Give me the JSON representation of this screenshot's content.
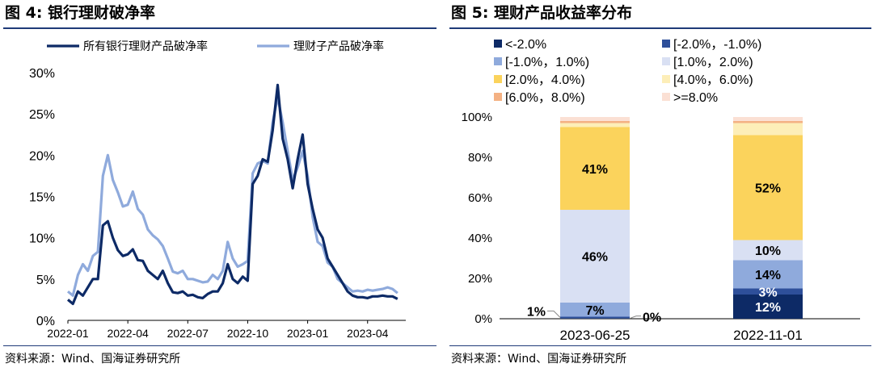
{
  "left": {
    "title": "图 4:  银行理财破净率",
    "source": "资料来源：Wind、国海证券研究所",
    "legend": [
      "所有银行理财产品破净率",
      "理财子产品破净率"
    ],
    "series_colors": [
      "#0d2a66",
      "#8faadc"
    ]
  },
  "right": {
    "title": "图 5:  理财产品收益率分布",
    "source": "资料来源：Wind、国海证券研究所",
    "legend": [
      {
        "label": "<-2.0%",
        "color": "#0d2a66"
      },
      {
        "label": "[-2.0%，-1.0%)",
        "color": "#2e4f9a"
      },
      {
        "label": "[-1.0%，1.0%)",
        "color": "#8faadc"
      },
      {
        "label": "[1.0%，2.0%)",
        "color": "#d9e0f3"
      },
      {
        "label": "[2.0%，4.0%)",
        "color": "#fbd35c"
      },
      {
        "label": "[4.0%，6.0%)",
        "color": "#fdeeb8"
      },
      {
        "label": "[6.0%，8.0%)",
        "color": "#f4b183"
      },
      {
        "label": ">=8.0%",
        "color": "#fbe0d4"
      }
    ]
  },
  "chart_data": [
    {
      "type": "line",
      "title": "银行理财破净率",
      "ylim": [
        0,
        30
      ],
      "yticks": [
        "0%",
        "5%",
        "10%",
        "15%",
        "20%",
        "25%",
        "30%"
      ],
      "xticks": [
        "2022-01",
        "2022-04",
        "2022-07",
        "2022-10",
        "2023-01",
        "2023-04"
      ],
      "xtick_values": [
        0,
        12,
        24,
        36,
        48,
        60
      ],
      "xlim": [
        0,
        67
      ],
      "x": [
        0,
        1,
        2,
        3,
        4,
        5,
        6,
        7,
        8,
        9,
        10,
        11,
        12,
        13,
        14,
        15,
        16,
        17,
        18,
        19,
        20,
        21,
        22,
        23,
        24,
        25,
        26,
        27,
        28,
        29,
        30,
        31,
        32,
        33,
        34,
        35,
        36,
        37,
        38,
        39,
        40,
        41,
        42,
        43,
        44,
        45,
        46,
        47,
        48,
        49,
        50,
        51,
        52,
        53,
        54,
        55,
        56,
        57,
        58,
        59,
        60,
        61,
        62,
        63,
        64,
        65,
        66
      ],
      "series": [
        {
          "name": "所有银行理财产品破净率",
          "values": [
            2.5,
            2.0,
            3.5,
            3.0,
            4.0,
            5.0,
            5.0,
            11.5,
            12.0,
            10.0,
            8.5,
            7.8,
            8.0,
            8.6,
            7.3,
            7.2,
            6.0,
            5.5,
            5.0,
            6.0,
            4.5,
            3.4,
            3.3,
            3.5,
            3.0,
            3.1,
            2.8,
            2.7,
            3.2,
            3.5,
            3.5,
            4.5,
            6.8,
            5.0,
            4.5,
            5.3,
            4.8,
            16.5,
            17.5,
            19.5,
            19.2,
            23.0,
            28.5,
            22.0,
            19.5,
            16.0,
            19.5,
            22.5,
            16.5,
            13.5,
            11.0,
            10.0,
            7.5,
            6.5,
            5.5,
            4.5,
            3.5,
            3.0,
            2.8,
            2.8,
            2.7,
            2.9,
            2.9,
            3.0,
            2.9,
            2.9,
            2.6
          ]
        },
        {
          "name": "理财子产品破净率",
          "values": [
            3.5,
            3.0,
            5.5,
            6.8,
            6.0,
            7.8,
            8.3,
            17.5,
            20.0,
            17.0,
            15.5,
            13.8,
            14.0,
            15.6,
            13.5,
            12.8,
            11.0,
            10.3,
            9.8,
            9.0,
            7.5,
            5.9,
            5.7,
            6.0,
            5.0,
            5.0,
            4.8,
            4.6,
            4.7,
            5.5,
            5.0,
            6.0,
            9.5,
            7.5,
            6.5,
            6.8,
            7.2,
            17.8,
            19.0,
            19.3,
            19.0,
            24.0,
            27.0,
            24.0,
            20.5,
            17.0,
            18.5,
            20.5,
            17.5,
            12.5,
            9.5,
            9.0,
            7.0,
            6.5,
            5.0,
            4.5,
            4.0,
            3.5,
            3.6,
            3.5,
            3.7,
            3.6,
            3.7,
            3.8,
            4.0,
            3.8,
            3.3
          ]
        }
      ]
    },
    {
      "type": "bar",
      "title": "理财产品收益率分布",
      "stacked": true,
      "ylim": [
        0,
        100
      ],
      "yticks": [
        "0%",
        "20%",
        "40%",
        "60%",
        "80%",
        "100%"
      ],
      "categories": [
        "2023-06-25",
        "2022-11-01"
      ],
      "series": [
        {
          "name": "<-2.0%",
          "values": [
            0.3,
            12
          ]
        },
        {
          "name": "[-2.0%，-1.0%)",
          "values": [
            0.7,
            3
          ]
        },
        {
          "name": "[-1.0%，1.0%)",
          "values": [
            7,
            14
          ]
        },
        {
          "name": "[1.0%，2.0%)",
          "values": [
            46,
            10
          ]
        },
        {
          "name": "[2.0%，4.0%)",
          "values": [
            41,
            52
          ]
        },
        {
          "name": "[4.0%，6.0%)",
          "values": [
            2,
            6
          ]
        },
        {
          "name": "[6.0%，8.0%)",
          "values": [
            1,
            1
          ]
        },
        {
          "name": ">=8.0%",
          "values": [
            2,
            2
          ]
        }
      ],
      "data_labels": [
        {
          "category": "2023-06-25",
          "series": "[-1.0%，1.0%)",
          "text": "7%"
        },
        {
          "category": "2023-06-25",
          "series": "[1.0%，2.0%)",
          "text": "46%"
        },
        {
          "category": "2023-06-25",
          "series": "[2.0%，4.0%)",
          "text": "41%"
        },
        {
          "category": "2022-11-01",
          "series": "<-2.0%",
          "text": "12%"
        },
        {
          "category": "2022-11-01",
          "series": "[-2.0%，-1.0%)",
          "text": "3%"
        },
        {
          "category": "2022-11-01",
          "series": "[-1.0%，1.0%)",
          "text": "14%"
        },
        {
          "category": "2022-11-01",
          "series": "[1.0%，2.0%)",
          "text": "10%"
        },
        {
          "category": "2022-11-01",
          "series": "[2.0%，4.0%)",
          "text": "52%"
        }
      ],
      "callouts": [
        {
          "category": "2023-06-25",
          "series": "[-2.0%，-1.0%)",
          "text": "1%",
          "side": "left"
        },
        {
          "category": "2023-06-25",
          "series": "<-2.0%",
          "text": "0%",
          "side": "right"
        }
      ]
    }
  ]
}
